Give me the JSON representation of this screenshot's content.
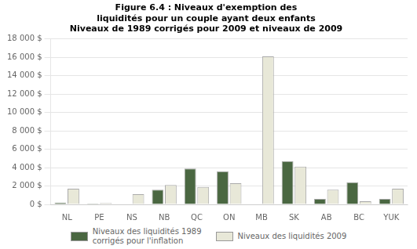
{
  "chart_data": {
    "type": "bar",
    "title": "Figure 6.4 : Niveaux d'exemption des\nliquidités pour un couple ayant deux enfants\nNiveaux de 1989 corrigés pour 2009 et niveaux de 2009",
    "categories": [
      "NL",
      "PE",
      "NS",
      "NB",
      "QC",
      "ON",
      "MB",
      "SK",
      "AB",
      "BC",
      "YUK"
    ],
    "series": [
      {
        "name": "Niveaux des liquidités 1989\ncorrigés pour l'inflation",
        "color": "#4a6741",
        "values": [
          200,
          100,
          0,
          1600,
          3900,
          3600,
          0,
          4700,
          600,
          2400,
          600
        ]
      },
      {
        "name": "Niveaux des liquidités 2009",
        "color": "#e8e8d8",
        "values": [
          1700,
          150,
          1100,
          2100,
          1900,
          2300,
          16100,
          4100,
          1600,
          350,
          1700
        ]
      }
    ],
    "ylim": [
      0,
      18000
    ],
    "yticks": [
      {
        "value": 0,
        "label": "0 $"
      },
      {
        "value": 2000,
        "label": "2 000 $"
      },
      {
        "value": 4000,
        "label": "4 000 $"
      },
      {
        "value": 6000,
        "label": "6 000 $"
      },
      {
        "value": 8000,
        "label": "8 000 $"
      },
      {
        "value": 10000,
        "label": "10 000 $"
      },
      {
        "value": 12000,
        "label": "12 000 $"
      },
      {
        "value": 14000,
        "label": "14 000 $"
      },
      {
        "value": 16000,
        "label": "16 000 $"
      },
      {
        "value": 18000,
        "label": "18 000 $"
      }
    ],
    "grid": true,
    "legend": "bottom"
  }
}
